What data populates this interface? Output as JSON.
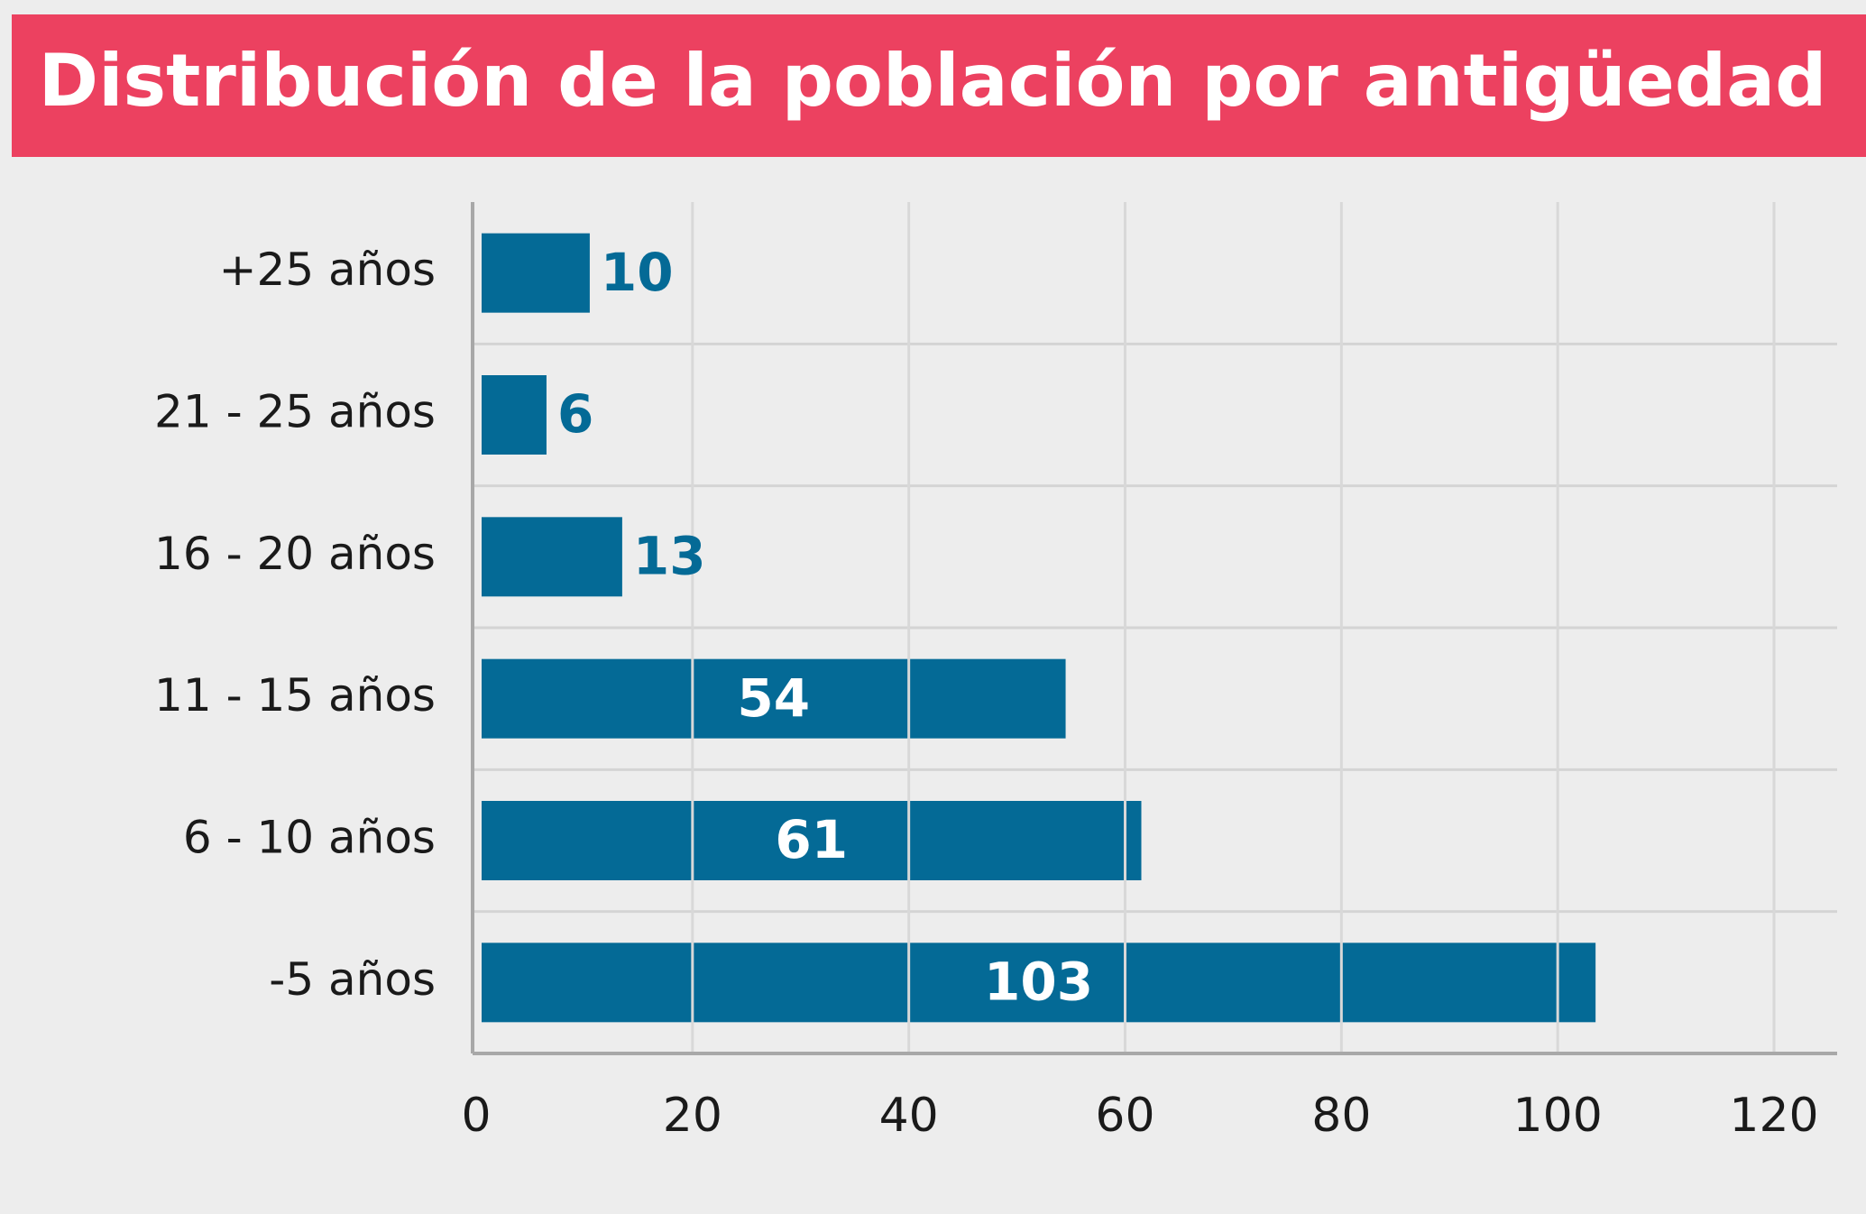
{
  "chart_data": {
    "type": "hbar",
    "title": "Distribución de la población por antigüedad",
    "categories": [
      "+25 años",
      "21 - 25 años",
      "16 - 20 años",
      "11 - 15 años",
      "6 - 10 años",
      "-5 años"
    ],
    "values": [
      10,
      6,
      13,
      54,
      61,
      103
    ],
    "color": "#046a96",
    "xlim": [
      0,
      120
    ],
    "xticks": [
      0,
      20,
      40,
      60,
      80,
      100,
      120
    ],
    "grid": true
  }
}
